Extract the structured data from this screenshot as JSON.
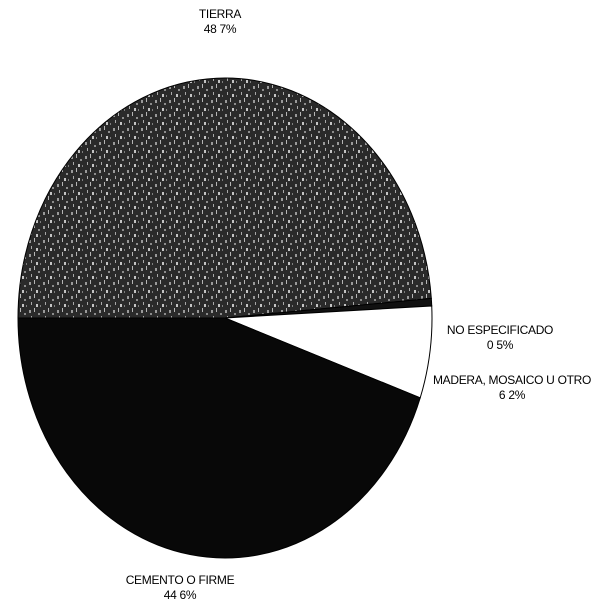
{
  "chart_data": {
    "type": "pie",
    "title": "",
    "slices": [
      {
        "label": "TIERRA",
        "value_label": "48 7%",
        "value": 48.7,
        "color": "#2a2a2a",
        "texture": "speckled"
      },
      {
        "label": "NO ESPECIFICADO",
        "value_label": "0 5%",
        "value": 0.5,
        "color": "#111111",
        "texture": "solid"
      },
      {
        "label": "MADERA, MOSAICO U OTRO",
        "value_label": "6 2%",
        "value": 6.2,
        "color": "#ffffff",
        "texture": "solid"
      },
      {
        "label": "CEMENTO O FIRME",
        "value_label": "44 6%",
        "value": 44.6,
        "color": "#080808",
        "texture": "solid"
      }
    ]
  }
}
